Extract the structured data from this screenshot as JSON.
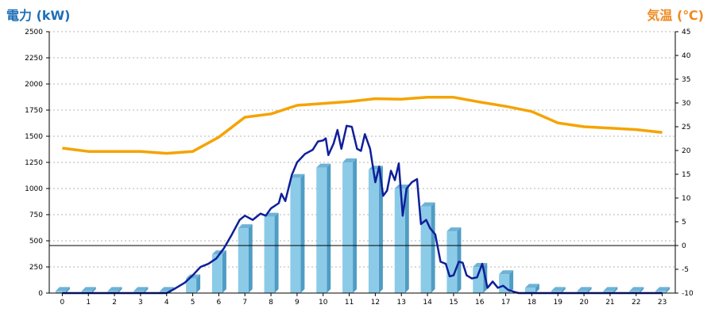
{
  "labels": {
    "left_unit": "電力 (kW)",
    "right_unit": "気温 (℃)",
    "left_unit_color": "#1e6fb5",
    "right_unit_color": "#ef8a22"
  },
  "chart_data": {
    "type": "bar",
    "title": "",
    "grid": true,
    "categories": [
      "0",
      "1",
      "2",
      "3",
      "4",
      "5",
      "6",
      "7",
      "8",
      "9",
      "10",
      "11",
      "12",
      "13",
      "14",
      "15",
      "16",
      "17",
      "18",
      "19",
      "20",
      "21",
      "22",
      "23"
    ],
    "y_left": {
      "label": "電力 (kW)",
      "min": 0,
      "max": 2500,
      "ticks": [
        0,
        250,
        500,
        750,
        1000,
        1250,
        1500,
        1750,
        2000,
        2250,
        2500
      ]
    },
    "y_right": {
      "label": "気温 (℃)",
      "min": -10,
      "max": 45,
      "ticks": [
        -10,
        -5,
        0,
        5,
        10,
        15,
        20,
        25,
        30,
        35,
        40,
        45
      ]
    },
    "colors": {
      "bar": "#8ccbe8",
      "bar_side": "#4f9cc4",
      "bar_top": "#6eb2d6",
      "power_line": "#0f1f99",
      "temp_line": "#f5a300",
      "zero_line": "#000000",
      "grid": "#b5b5b5"
    },
    "bars": {
      "axis": "left",
      "values": [
        20,
        20,
        20,
        20,
        20,
        140,
        370,
        620,
        730,
        1100,
        1200,
        1250,
        1180,
        1000,
        830,
        590,
        250,
        180,
        50,
        20,
        20,
        20,
        20,
        20
      ]
    },
    "power_line": {
      "axis": "left",
      "points": [
        [
          0,
          0
        ],
        [
          1,
          0
        ],
        [
          2,
          0
        ],
        [
          3,
          0
        ],
        [
          4,
          0
        ],
        [
          4.3,
          40
        ],
        [
          4.7,
          100
        ],
        [
          5,
          170
        ],
        [
          5.3,
          250
        ],
        [
          5.6,
          280
        ],
        [
          5.9,
          330
        ],
        [
          6.2,
          430
        ],
        [
          6.5,
          560
        ],
        [
          6.8,
          700
        ],
        [
          7,
          740
        ],
        [
          7.3,
          700
        ],
        [
          7.6,
          760
        ],
        [
          7.8,
          740
        ],
        [
          8,
          810
        ],
        [
          8.3,
          860
        ],
        [
          8.4,
          950
        ],
        [
          8.55,
          880
        ],
        [
          8.8,
          1130
        ],
        [
          9,
          1250
        ],
        [
          9.3,
          1330
        ],
        [
          9.6,
          1370
        ],
        [
          9.8,
          1450
        ],
        [
          10,
          1460
        ],
        [
          10.1,
          1480
        ],
        [
          10.2,
          1320
        ],
        [
          10.4,
          1430
        ],
        [
          10.55,
          1560
        ],
        [
          10.7,
          1380
        ],
        [
          10.9,
          1600
        ],
        [
          11.1,
          1590
        ],
        [
          11.3,
          1380
        ],
        [
          11.45,
          1360
        ],
        [
          11.6,
          1520
        ],
        [
          11.8,
          1380
        ],
        [
          12,
          1060
        ],
        [
          12.15,
          1210
        ],
        [
          12.3,
          930
        ],
        [
          12.45,
          980
        ],
        [
          12.6,
          1170
        ],
        [
          12.75,
          1080
        ],
        [
          12.9,
          1240
        ],
        [
          13.05,
          740
        ],
        [
          13.2,
          1000
        ],
        [
          13.4,
          1060
        ],
        [
          13.6,
          1090
        ],
        [
          13.75,
          660
        ],
        [
          13.95,
          700
        ],
        [
          14.1,
          620
        ],
        [
          14.3,
          560
        ],
        [
          14.5,
          300
        ],
        [
          14.7,
          280
        ],
        [
          14.85,
          160
        ],
        [
          15,
          170
        ],
        [
          15.2,
          300
        ],
        [
          15.35,
          290
        ],
        [
          15.5,
          170
        ],
        [
          15.7,
          140
        ],
        [
          15.9,
          150
        ],
        [
          16.1,
          280
        ],
        [
          16.3,
          50
        ],
        [
          16.5,
          110
        ],
        [
          16.7,
          50
        ],
        [
          16.9,
          70
        ],
        [
          17.1,
          30
        ],
        [
          17.35,
          10
        ],
        [
          17.5,
          0
        ],
        [
          18,
          0
        ],
        [
          19,
          0
        ],
        [
          20,
          0
        ],
        [
          21,
          0
        ],
        [
          22,
          0
        ],
        [
          23,
          0
        ]
      ]
    },
    "temperature_line": {
      "axis": "right",
      "points": [
        [
          0,
          20.5
        ],
        [
          1,
          19.8
        ],
        [
          2,
          19.8
        ],
        [
          3,
          19.8
        ],
        [
          4,
          19.4
        ],
        [
          5,
          19.8
        ],
        [
          6,
          22.8
        ],
        [
          7,
          27
        ],
        [
          8,
          27.7
        ],
        [
          9,
          29.5
        ],
        [
          10,
          29.9
        ],
        [
          11,
          30.3
        ],
        [
          12,
          30.9
        ],
        [
          13,
          30.8
        ],
        [
          14,
          31.2
        ],
        [
          15,
          31.2
        ],
        [
          16,
          30.2
        ],
        [
          17,
          29.3
        ],
        [
          18,
          28.2
        ],
        [
          19,
          25.8
        ],
        [
          20,
          25
        ],
        [
          21,
          24.7
        ],
        [
          22,
          24.4
        ],
        [
          23,
          23.8
        ]
      ]
    }
  }
}
